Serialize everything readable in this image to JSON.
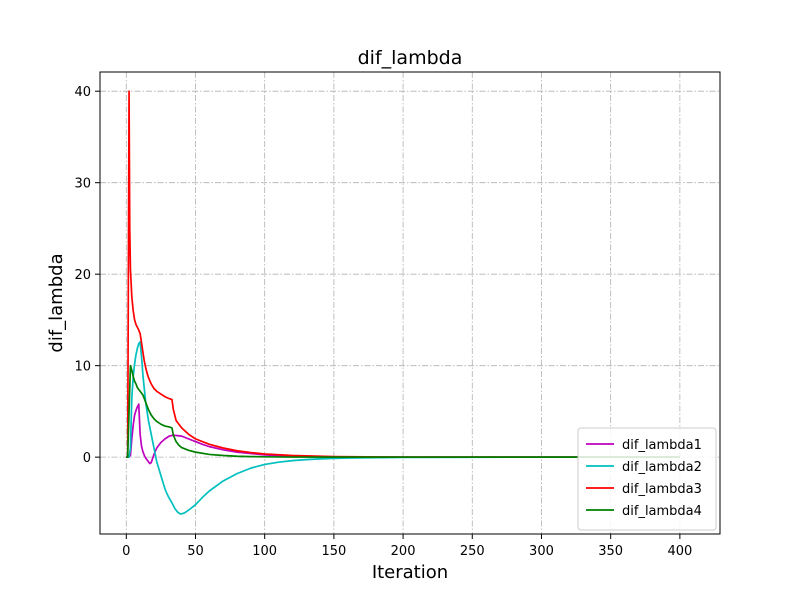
{
  "chart_data": {
    "type": "line",
    "title": "dif_lambda",
    "xlabel": "Iteration",
    "ylabel": "dif_lambda",
    "xlim": [
      -19,
      429
    ],
    "ylim": [
      -8.4,
      42.1
    ],
    "xticks": [
      0,
      50,
      100,
      150,
      200,
      250,
      300,
      350,
      400
    ],
    "yticks": [
      0,
      10,
      20,
      30,
      40
    ],
    "grid": true,
    "legend_position": "lower-right",
    "series": [
      {
        "name": "dif_lambda1",
        "color": "#bf00bf",
        "x": [
          0,
          1,
          2,
          3,
          4,
          5,
          6,
          7,
          8,
          9,
          10,
          11,
          12,
          13,
          14,
          15,
          16,
          17,
          18,
          20,
          22,
          25,
          28,
          31,
          34,
          37,
          40,
          45,
          50,
          55,
          60,
          70,
          80,
          90,
          100,
          120,
          150,
          200,
          250,
          300,
          350,
          400
        ],
        "y": [
          0,
          0,
          0,
          0.2,
          2.0,
          3.5,
          4.6,
          5.1,
          5.5,
          5.8,
          2.5,
          1.2,
          0.6,
          0.2,
          -0.1,
          -0.3,
          -0.5,
          -0.7,
          -0.6,
          0.3,
          1.0,
          1.6,
          2.0,
          2.3,
          2.4,
          2.35,
          2.3,
          2.0,
          1.7,
          1.4,
          1.15,
          0.8,
          0.55,
          0.4,
          0.25,
          0.1,
          0.03,
          0.0,
          0.0,
          0.0,
          0.0,
          0.0
        ]
      },
      {
        "name": "dif_lambda2",
        "color": "#00bfbf",
        "x": [
          0,
          1,
          2,
          3,
          4,
          5,
          6,
          7,
          8,
          9,
          10,
          11,
          12,
          13,
          14,
          15,
          16,
          18,
          20,
          22,
          25,
          28,
          30,
          33,
          35,
          37,
          39,
          40,
          42,
          45,
          50,
          55,
          60,
          70,
          80,
          90,
          100,
          110,
          120,
          130,
          140,
          150,
          160,
          180,
          200,
          250,
          300,
          350,
          400
        ],
        "y": [
          0,
          0,
          0,
          1.0,
          6.5,
          8.8,
          10.2,
          11.2,
          11.9,
          12.4,
          12.6,
          11.0,
          9.0,
          7.5,
          6.0,
          5.0,
          4.0,
          2.5,
          1.0,
          -0.5,
          -2.0,
          -3.5,
          -4.2,
          -5.0,
          -5.6,
          -6.0,
          -6.2,
          -6.2,
          -6.1,
          -5.8,
          -5.2,
          -4.4,
          -3.7,
          -2.6,
          -1.8,
          -1.2,
          -0.8,
          -0.55,
          -0.38,
          -0.27,
          -0.19,
          -0.14,
          -0.1,
          -0.06,
          -0.03,
          -0.01,
          0.0,
          0.0,
          0.0
        ]
      },
      {
        "name": "dif_lambda3",
        "color": "#ff0000",
        "x": [
          0,
          1,
          1.5,
          2,
          2.5,
          3,
          4,
          5,
          6,
          7,
          8,
          9,
          10,
          11,
          12,
          13,
          14,
          15,
          16,
          18,
          20,
          22,
          25,
          28,
          31,
          33,
          34,
          36,
          40,
          45,
          50,
          60,
          70,
          80,
          90,
          100,
          120,
          150,
          200,
          250,
          300,
          350,
          400
        ],
        "y": [
          0,
          0,
          20.0,
          40.0,
          25.0,
          20.5,
          17.5,
          16.0,
          15.0,
          14.5,
          14.2,
          13.9,
          13.5,
          12.5,
          11.5,
          10.5,
          9.8,
          9.2,
          8.7,
          8.0,
          7.5,
          7.2,
          6.9,
          6.6,
          6.4,
          6.3,
          5.2,
          4.0,
          3.2,
          2.5,
          2.0,
          1.4,
          1.0,
          0.7,
          0.5,
          0.35,
          0.18,
          0.06,
          0.01,
          0.0,
          0.0,
          0.0,
          0.0
        ]
      },
      {
        "name": "dif_lambda4",
        "color": "#008000",
        "x": [
          0,
          1,
          2,
          3,
          4,
          5,
          6,
          7,
          8,
          9,
          10,
          11,
          12,
          13,
          14,
          15,
          16,
          18,
          20,
          22,
          25,
          28,
          31,
          33,
          34,
          36,
          38,
          40,
          45,
          50,
          60,
          70,
          80,
          90,
          100,
          120,
          150,
          200,
          250,
          300,
          350,
          400
        ],
        "y": [
          0,
          0,
          5.0,
          10.0,
          9.5,
          8.8,
          8.3,
          8.0,
          7.6,
          7.4,
          7.2,
          7.0,
          6.8,
          6.4,
          6.0,
          5.6,
          5.2,
          4.6,
          4.2,
          3.9,
          3.6,
          3.4,
          3.3,
          3.2,
          2.4,
          1.7,
          1.3,
          1.05,
          0.75,
          0.55,
          0.3,
          0.18,
          0.1,
          0.06,
          0.04,
          0.01,
          0.0,
          0.0,
          0.0,
          0.0,
          0.0,
          0.0
        ]
      }
    ]
  }
}
